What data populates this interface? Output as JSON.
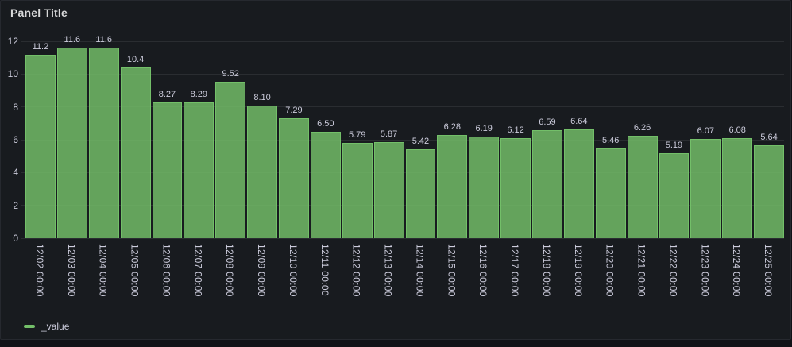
{
  "panel": {
    "title": "Panel Title"
  },
  "legend": {
    "items": [
      {
        "label": "_value",
        "color": "#73BF69"
      }
    ]
  },
  "chart_data": {
    "type": "bar",
    "title": "Panel Title",
    "series_name": "_value",
    "x": [
      "12/02 00:00",
      "12/03 00:00",
      "12/04 00:00",
      "12/05 00:00",
      "12/06 00:00",
      "12/07 00:00",
      "12/08 00:00",
      "12/09 00:00",
      "12/10 00:00",
      "12/11 00:00",
      "12/12 00:00",
      "12/13 00:00",
      "12/14 00:00",
      "12/15 00:00",
      "12/16 00:00",
      "12/17 00:00",
      "12/18 00:00",
      "12/19 00:00",
      "12/20 00:00",
      "12/21 00:00",
      "12/22 00:00",
      "12/23 00:00",
      "12/24 00:00",
      "12/25 00:00"
    ],
    "values": [
      11.2,
      11.6,
      11.6,
      10.4,
      8.27,
      8.29,
      9.52,
      8.1,
      7.29,
      6.5,
      5.79,
      5.87,
      5.42,
      6.28,
      6.19,
      6.12,
      6.59,
      6.64,
      5.46,
      6.26,
      5.19,
      6.07,
      6.08,
      5.64
    ],
    "value_labels": [
      "11.2",
      "11.6",
      "11.6",
      "10.4",
      "8.27",
      "8.29",
      "9.52",
      "8.10",
      "7.29",
      "6.50",
      "5.79",
      "5.87",
      "5.42",
      "6.28",
      "6.19",
      "6.12",
      "6.59",
      "6.64",
      "5.46",
      "6.26",
      "5.19",
      "6.07",
      "6.08",
      "5.64"
    ],
    "y_ticks": [
      "0",
      "2",
      "4",
      "6",
      "8",
      "10",
      "12"
    ],
    "ylim": [
      0,
      12
    ],
    "xlabel": "",
    "ylabel": "",
    "grid": "horizontal",
    "legend_position": "bottom-left",
    "x_label_rotation_deg": 90,
    "bar_color": "#73BF69",
    "bar_fill_opacity": 0.83
  },
  "colors": {
    "page_bg": "#111217",
    "panel_bg": "#181B1F",
    "panel_border": "#26292F",
    "title_text": "#D8D9DA",
    "axis_text": "#CCCCDC",
    "value_label_text": "#CCCCDC",
    "grid_line": "rgba(204,204,220,0.10)",
    "bar_border": "#73BF69"
  }
}
